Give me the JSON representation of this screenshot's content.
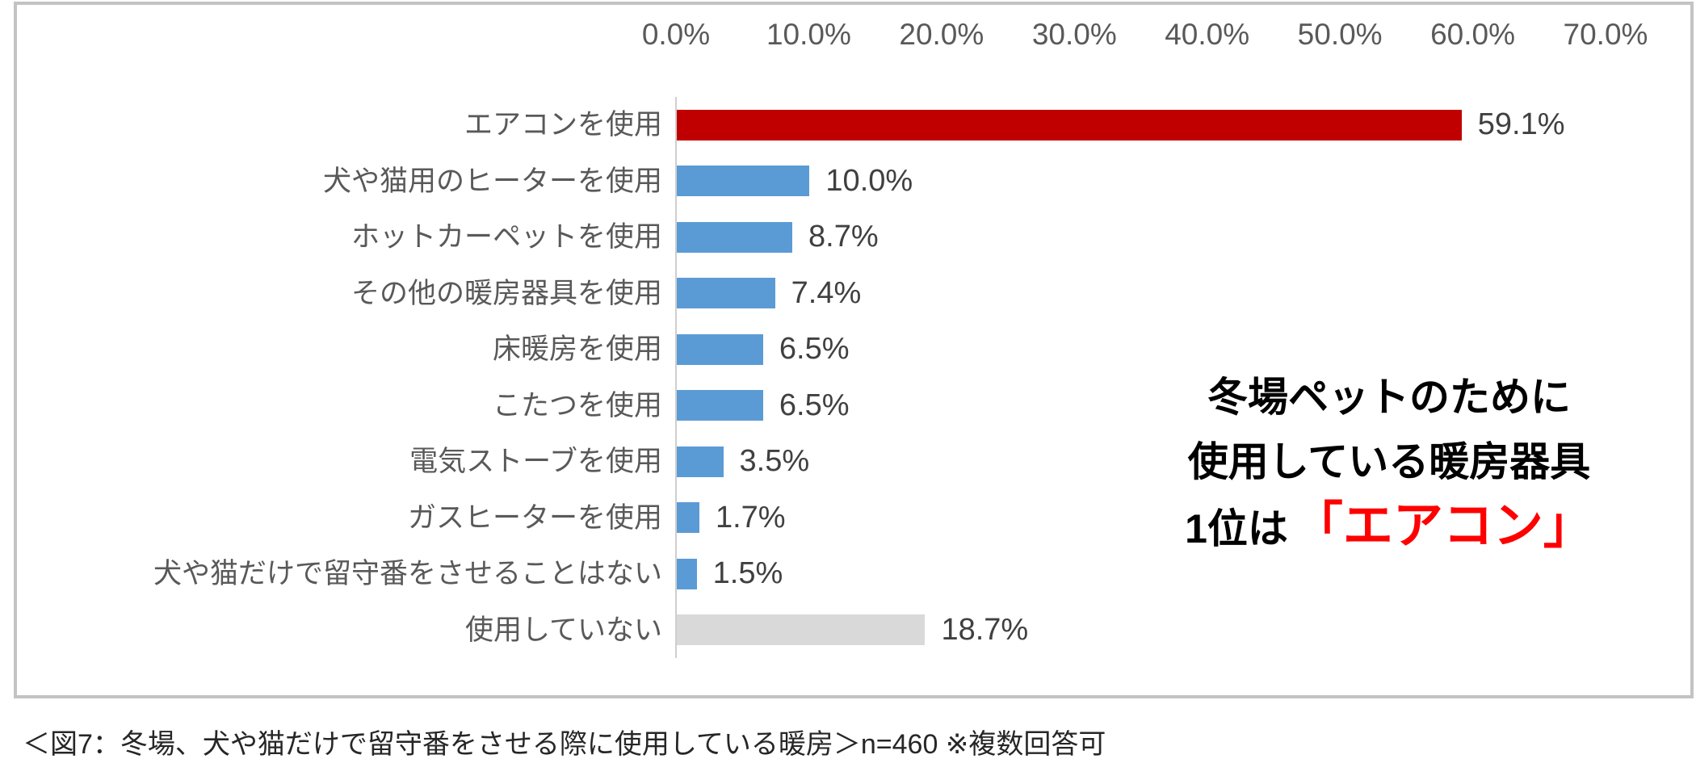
{
  "chart_data": {
    "type": "bar",
    "orientation": "horizontal",
    "title": "",
    "xlabel": "",
    "ylabel": "",
    "xlim": [
      0,
      70
    ],
    "grid": false,
    "legend": "none",
    "x_ticks": [
      "0.0%",
      "10.0%",
      "20.0%",
      "30.0%",
      "40.0%",
      "50.0%",
      "60.0%",
      "70.0%"
    ],
    "categories": [
      "エアコンを使用",
      "犬や猫用のヒーターを使用",
      "ホットカーペットを使用",
      "その他の暖房器具を使用",
      "床暖房を使用",
      "こたつを使用",
      "電気ストーブを使用",
      "ガスヒーターを使用",
      "犬や猫だけで留守番をさせることはない",
      "使用していない"
    ],
    "values": [
      59.1,
      10.0,
      8.7,
      7.4,
      6.5,
      6.5,
      3.5,
      1.7,
      1.5,
      18.7
    ],
    "value_labels": [
      "59.1%",
      "10.0%",
      "8.7%",
      "7.4%",
      "6.5%",
      "6.5%",
      "3.5%",
      "1.7%",
      "1.5%",
      "18.7%"
    ],
    "bar_colors": [
      "#c00000",
      "#5b9bd5",
      "#5b9bd5",
      "#5b9bd5",
      "#5b9bd5",
      "#5b9bd5",
      "#5b9bd5",
      "#5b9bd5",
      "#5b9bd5",
      "#d9d9d9"
    ]
  },
  "annotation": {
    "line1": "冬場ペットのために",
    "line2": "使用している暖房器具",
    "line3_prefix": "1位は",
    "line3_highlight": "「エアコン」",
    "highlight_color": "#ff0000"
  },
  "caption": {
    "text": "＜図7：冬場、犬や猫だけで留守番をさせる際に使用している暖房＞n=460 ※複数回答可"
  },
  "colors": {
    "top_bar_red": "#c00000",
    "series_blue": "#5b9bd5",
    "not_using_gray": "#d9d9d9",
    "axis_text": "#595959",
    "value_text": "#404040",
    "annotation_red": "#ff0000"
  }
}
